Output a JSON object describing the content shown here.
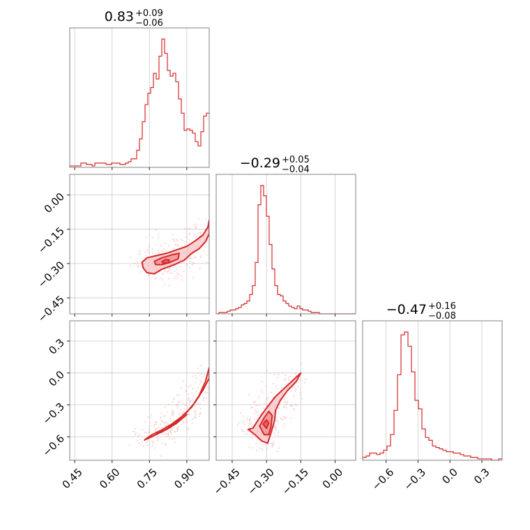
{
  "chart_data": {
    "type": "corner",
    "parameters": [
      {
        "title_main": "0.83",
        "title_plus": "+0.09",
        "title_minus": "−0.06",
        "range": [
          0.43,
          0.99
        ],
        "ticks": [
          0.45,
          0.6,
          0.75,
          0.9
        ],
        "tick_labels": [
          "0.45",
          "0.60",
          "0.75",
          "0.90"
        ]
      },
      {
        "title_main": "−0.29",
        "title_plus": "+0.05",
        "title_minus": "−0.04",
        "range": [
          -0.52,
          0.09
        ],
        "ticks": [
          -0.45,
          -0.3,
          -0.15,
          0.0
        ],
        "tick_labels": [
          "−0.45",
          "−0.30",
          "−0.15",
          "0.00"
        ]
      },
      {
        "title_main": "−0.47",
        "title_plus": "+0.16",
        "title_minus": "−0.08",
        "range": [
          -0.82,
          0.49
        ],
        "ticks": [
          -0.6,
          -0.3,
          0.0,
          0.3
        ],
        "tick_labels": [
          "−0.6",
          "−0.3",
          "0.0",
          "0.3"
        ]
      }
    ],
    "histograms": [
      {
        "param": 0,
        "bins": [
          0.43,
          0.99
        ],
        "counts": [
          1,
          1,
          1,
          1,
          3,
          3,
          2,
          2,
          1,
          3,
          3,
          3,
          3,
          2,
          2,
          3,
          3,
          3,
          2,
          2,
          3,
          4,
          6,
          6,
          12,
          20,
          32,
          44,
          52,
          56,
          66,
          62,
          78,
          90,
          80,
          68,
          64,
          66,
          60,
          48,
          38,
          26,
          27,
          26,
          24,
          18,
          15,
          25,
          36,
          38
        ]
      },
      {
        "param": 1,
        "bins": [
          -0.52,
          0.09
        ],
        "counts": [
          0,
          1,
          1,
          1,
          2,
          3,
          3,
          4,
          5,
          7,
          8,
          10,
          15,
          22,
          40,
          85,
          100,
          92,
          76,
          54,
          35,
          22,
          15,
          14,
          10,
          8,
          6,
          5,
          4,
          6,
          4,
          3,
          3,
          2,
          1,
          1,
          1,
          0,
          0,
          0,
          0,
          0,
          0,
          0,
          0,
          0,
          0,
          0,
          0,
          0
        ]
      },
      {
        "param": 2,
        "bins": [
          -0.82,
          0.49
        ],
        "counts": [
          2,
          3,
          5,
          5,
          4,
          5,
          7,
          10,
          18,
          35,
          60,
          88,
          90,
          80,
          62,
          42,
          36,
          22,
          16,
          14,
          10,
          9,
          8,
          7,
          6,
          6,
          5,
          5,
          4,
          3,
          3,
          2,
          2,
          1,
          1,
          1,
          1,
          0,
          0,
          1
        ]
      }
    ],
    "scatter_2d": [
      {
        "x_param": 0,
        "y_param": 1,
        "contours": [
          [
            [
              0.72,
              -0.295
            ],
            [
              0.74,
              -0.275
            ],
            [
              0.78,
              -0.265
            ],
            [
              0.82,
              -0.255
            ],
            [
              0.86,
              -0.24
            ],
            [
              0.9,
              -0.225
            ],
            [
              0.935,
              -0.2
            ],
            [
              0.965,
              -0.175
            ],
            [
              0.985,
              -0.14
            ],
            [
              0.99,
              -0.11
            ],
            [
              0.99,
              -0.17
            ],
            [
              0.975,
              -0.205
            ],
            [
              0.95,
              -0.235
            ],
            [
              0.92,
              -0.255
            ],
            [
              0.89,
              -0.285
            ],
            [
              0.85,
              -0.305
            ],
            [
              0.8,
              -0.325
            ],
            [
              0.77,
              -0.345
            ],
            [
              0.74,
              -0.34
            ],
            [
              0.725,
              -0.32
            ],
            [
              0.72,
              -0.295
            ]
          ],
          [
            [
              0.77,
              -0.29
            ],
            [
              0.8,
              -0.275
            ],
            [
              0.84,
              -0.262
            ],
            [
              0.87,
              -0.255
            ],
            [
              0.865,
              -0.28
            ],
            [
              0.83,
              -0.296
            ],
            [
              0.8,
              -0.305
            ],
            [
              0.775,
              -0.305
            ],
            [
              0.77,
              -0.29
            ]
          ],
          [
            [
              0.8,
              -0.292
            ],
            [
              0.815,
              -0.283
            ],
            [
              0.83,
              -0.285
            ],
            [
              0.825,
              -0.297
            ],
            [
              0.805,
              -0.298
            ],
            [
              0.8,
              -0.292
            ]
          ]
        ]
      },
      {
        "x_param": 0,
        "y_param": 2,
        "contours": [
          [
            [
              0.73,
              -0.63
            ],
            [
              0.76,
              -0.58
            ],
            [
              0.8,
              -0.535
            ],
            [
              0.84,
              -0.48
            ],
            [
              0.88,
              -0.41
            ],
            [
              0.92,
              -0.32
            ],
            [
              0.95,
              -0.21
            ],
            [
              0.975,
              -0.08
            ],
            [
              0.99,
              0.05
            ],
            [
              0.99,
              -0.05
            ],
            [
              0.965,
              -0.16
            ],
            [
              0.935,
              -0.27
            ],
            [
              0.9,
              -0.37
            ],
            [
              0.86,
              -0.455
            ],
            [
              0.82,
              -0.525
            ],
            [
              0.78,
              -0.575
            ],
            [
              0.75,
              -0.61
            ],
            [
              0.73,
              -0.63
            ]
          ],
          [
            [
              0.78,
              -0.57
            ],
            [
              0.82,
              -0.53
            ],
            [
              0.86,
              -0.47
            ],
            [
              0.9,
              -0.39
            ],
            [
              0.88,
              -0.43
            ],
            [
              0.84,
              -0.5
            ],
            [
              0.8,
              -0.555
            ],
            [
              0.78,
              -0.57
            ]
          ]
        ]
      },
      {
        "x_param": 1,
        "y_param": 2,
        "contours": [
          [
            [
              -0.36,
              -0.52
            ],
            [
              -0.33,
              -0.42
            ],
            [
              -0.3,
              -0.33
            ],
            [
              -0.26,
              -0.22
            ],
            [
              -0.22,
              -0.14
            ],
            [
              -0.18,
              -0.06
            ],
            [
              -0.15,
              0.0
            ],
            [
              -0.17,
              -0.08
            ],
            [
              -0.21,
              -0.17
            ],
            [
              -0.24,
              -0.26
            ],
            [
              -0.26,
              -0.35
            ],
            [
              -0.265,
              -0.45
            ],
            [
              -0.28,
              -0.56
            ],
            [
              -0.295,
              -0.66
            ],
            [
              -0.32,
              -0.64
            ],
            [
              -0.35,
              -0.58
            ],
            [
              -0.38,
              -0.53
            ],
            [
              -0.36,
              -0.52
            ]
          ],
          [
            [
              -0.33,
              -0.5
            ],
            [
              -0.31,
              -0.42
            ],
            [
              -0.29,
              -0.36
            ],
            [
              -0.275,
              -0.4
            ],
            [
              -0.28,
              -0.5
            ],
            [
              -0.29,
              -0.58
            ],
            [
              -0.31,
              -0.58
            ],
            [
              -0.33,
              -0.5
            ]
          ],
          [
            [
              -0.315,
              -0.48
            ],
            [
              -0.3,
              -0.44
            ],
            [
              -0.29,
              -0.47
            ],
            [
              -0.3,
              -0.52
            ],
            [
              -0.315,
              -0.48
            ]
          ]
        ]
      }
    ],
    "grid": true,
    "color": "#d62728"
  }
}
